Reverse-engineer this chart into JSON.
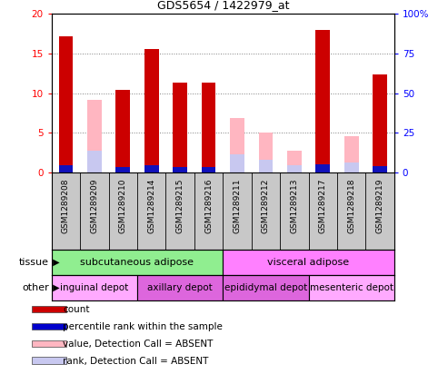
{
  "title": "GDS5654 / 1422979_at",
  "samples": [
    "GSM1289208",
    "GSM1289209",
    "GSM1289210",
    "GSM1289214",
    "GSM1289215",
    "GSM1289216",
    "GSM1289211",
    "GSM1289212",
    "GSM1289213",
    "GSM1289217",
    "GSM1289218",
    "GSM1289219"
  ],
  "count": [
    17.2,
    0,
    10.4,
    15.6,
    11.3,
    11.3,
    0,
    0,
    0,
    17.9,
    0,
    12.4
  ],
  "percentile_pct": [
    4.7,
    0,
    3.4,
    4.6,
    3.5,
    3.5,
    0,
    0,
    0,
    5.0,
    0,
    3.8
  ],
  "value_absent": [
    0,
    9.1,
    0,
    0,
    0,
    0,
    6.9,
    5.0,
    2.7,
    0,
    4.6,
    0
  ],
  "rank_absent_pct": [
    0,
    13.5,
    0,
    0,
    0,
    0,
    11.5,
    8.0,
    4.5,
    0,
    6.5,
    0
  ],
  "ylim_left": [
    0,
    20
  ],
  "ylim_right": [
    0,
    100
  ],
  "yticks_left": [
    0,
    5,
    10,
    15,
    20
  ],
  "yticks_right": [
    0,
    25,
    50,
    75,
    100
  ],
  "yticklabels_right": [
    "0",
    "25",
    "50",
    "75",
    "100%"
  ],
  "tissue_groups": [
    {
      "label": "subcutaneous adipose",
      "start": 0,
      "end": 6,
      "color": "#90ee90"
    },
    {
      "label": "visceral adipose",
      "start": 6,
      "end": 12,
      "color": "#ff80ff"
    }
  ],
  "other_groups": [
    {
      "label": "inguinal depot",
      "start": 0,
      "end": 3,
      "color": "#ffaaff"
    },
    {
      "label": "axillary depot",
      "start": 3,
      "end": 6,
      "color": "#dd66dd"
    },
    {
      "label": "epididymal depot",
      "start": 6,
      "end": 9,
      "color": "#dd66dd"
    },
    {
      "label": "mesenteric depot",
      "start": 9,
      "end": 12,
      "color": "#ffaaff"
    }
  ],
  "legend_items": [
    {
      "color": "#cc0000",
      "label": "count"
    },
    {
      "color": "#0000cc",
      "label": "percentile rank within the sample"
    },
    {
      "color": "#ffb6c1",
      "label": "value, Detection Call = ABSENT"
    },
    {
      "color": "#c8c8f0",
      "label": "rank, Detection Call = ABSENT"
    }
  ],
  "bar_width": 0.5,
  "bar_color_count": "#cc0000",
  "bar_color_percentile": "#1111bb",
  "bar_color_absent_value": "#ffb6c1",
  "bar_color_absent_rank": "#c8c8f0",
  "xticklabel_bg": "#c8c8c8",
  "plot_bg": "#ffffff"
}
